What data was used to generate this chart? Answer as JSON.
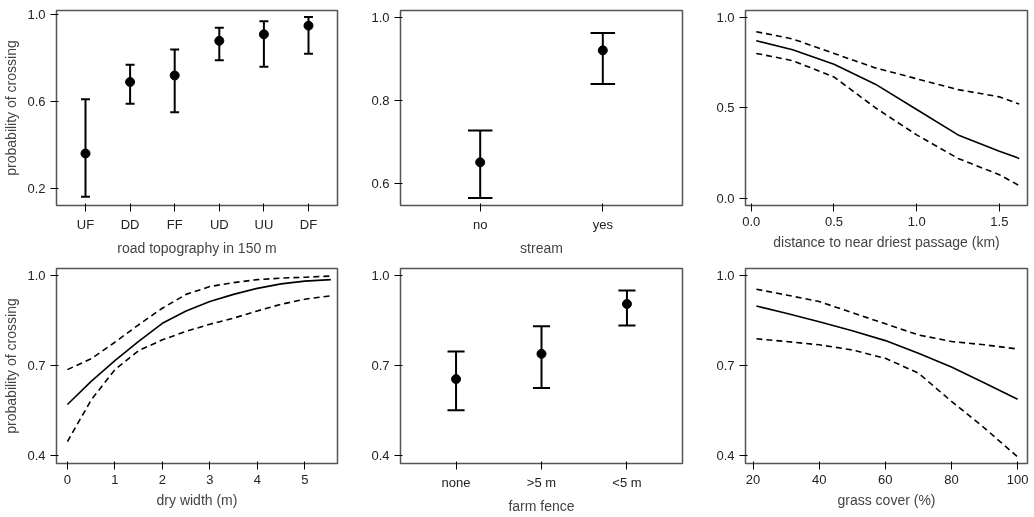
{
  "chart_data": [
    {
      "type": "scatter",
      "xlabel": "road topography in 150 m",
      "ylabel": "probability of crossing",
      "categories": [
        "UF",
        "DD",
        "FF",
        "UD",
        "UU",
        "DF"
      ],
      "values": [
        0.36,
        0.69,
        0.72,
        0.88,
        0.91,
        0.95
      ],
      "errors": [
        [
          0.16,
          0.61
        ],
        [
          0.59,
          0.77
        ],
        [
          0.55,
          0.84
        ],
        [
          0.79,
          0.94
        ],
        [
          0.76,
          0.97
        ],
        [
          0.82,
          0.99
        ]
      ],
      "marker": "circle",
      "color": "#000000",
      "ylim": [
        0.12,
        1.02
      ],
      "yticks": [
        {
          "value": 0.2,
          "label": "0.2"
        },
        {
          "value": 0.6,
          "label": "0.6"
        },
        {
          "value": 1,
          "label": "1.0"
        }
      ],
      "grid": false
    },
    {
      "type": "scatter",
      "xlabel": "stream",
      "categories": [
        "no",
        "yes"
      ],
      "values": [
        0.65,
        0.92
      ],
      "errors": [
        [
          0.564,
          0.727
        ],
        [
          0.839,
          0.962
        ]
      ],
      "marker": "circle",
      "color": "#000000",
      "ylim": [
        0.546,
        1.016
      ],
      "yticks": [
        {
          "value": 0.6,
          "label": "0.6"
        },
        {
          "value": 0.8,
          "label": "0.8"
        },
        {
          "value": 1,
          "label": "1.0"
        }
      ],
      "grid": false
    },
    {
      "type": "line",
      "xlabel": "distance to near driest passage (km)",
      "x": [
        0.03,
        0.25,
        0.5,
        0.75,
        1.0,
        1.25,
        1.5,
        1.62
      ],
      "series": [
        {
          "color": "#000000",
          "line_style": "solid",
          "values": [
            0.87,
            0.82,
            0.74,
            0.63,
            0.49,
            0.35,
            0.26,
            0.22
          ]
        },
        {
          "color": "#000000",
          "line_style": "dashed",
          "values": [
            0.92,
            0.88,
            0.8,
            0.72,
            0.66,
            0.6,
            0.56,
            0.52
          ]
        },
        {
          "color": "#000000",
          "line_style": "dashed",
          "values": [
            0.8,
            0.76,
            0.67,
            0.5,
            0.35,
            0.22,
            0.13,
            0.07
          ]
        }
      ],
      "xlim": [
        -0.035,
        1.67
      ],
      "xticks": [
        {
          "value": 0,
          "label": "0.0"
        },
        {
          "value": 0.5,
          "label": "0.5"
        },
        {
          "value": 1,
          "label": "1.0"
        },
        {
          "value": 1.5,
          "label": "1.5"
        }
      ],
      "ylim": [
        -0.04,
        1.037
      ],
      "yticks": [
        {
          "value": 0,
          "label": "0.0"
        },
        {
          "value": 0.5,
          "label": "0.5"
        },
        {
          "value": 1,
          "label": "1.0"
        }
      ],
      "grid": false,
      "marker": "none"
    },
    {
      "type": "line",
      "xlabel": "dry width (m)",
      "ylabel": "probability of crossing",
      "x": [
        0,
        0.5,
        1,
        1.5,
        2,
        2.5,
        3,
        3.5,
        4,
        4.5,
        5,
        5.55
      ],
      "series": [
        {
          "color": "#000000",
          "line_style": "solid",
          "values": [
            0.57,
            0.647,
            0.716,
            0.78,
            0.84,
            0.881,
            0.912,
            0.936,
            0.956,
            0.971,
            0.98,
            0.985
          ]
        },
        {
          "color": "#000000",
          "line_style": "dashed",
          "values": [
            0.686,
            0.722,
            0.777,
            0.835,
            0.89,
            0.936,
            0.962,
            0.975,
            0.985,
            0.99,
            0.993,
            0.997
          ]
        },
        {
          "color": "#000000",
          "line_style": "dashed",
          "values": [
            0.447,
            0.585,
            0.686,
            0.749,
            0.785,
            0.813,
            0.837,
            0.857,
            0.881,
            0.903,
            0.92,
            0.931
          ]
        }
      ],
      "xlim": [
        -0.23,
        5.69
      ],
      "xticks": [
        0,
        1,
        2,
        3,
        4,
        5
      ],
      "ylim": [
        0.374,
        1.022
      ],
      "yticks": [
        {
          "value": 0.4,
          "label": "0.4"
        },
        {
          "value": 0.7,
          "label": "0.7"
        },
        {
          "value": 1,
          "label": "1.0"
        }
      ],
      "grid": false,
      "marker": "none"
    },
    {
      "type": "scatter",
      "xlabel": "farm fence",
      "categories": [
        "none",
        ">5 m",
        "<5 m"
      ],
      "values": [
        0.656,
        0.74,
        0.906
      ],
      "errors": [
        [
          0.552,
          0.748
        ],
        [
          0.626,
          0.832
        ],
        [
          0.834,
          0.951
        ]
      ],
      "marker": "circle",
      "color": "#000000",
      "ylim": [
        0.375,
        1.024
      ],
      "yticks": [
        {
          "value": 0.4,
          "label": "0.4"
        },
        {
          "value": 0.7,
          "label": "0.7"
        },
        {
          "value": 1,
          "label": "1.0"
        }
      ],
      "grid": false
    },
    {
      "type": "line",
      "xlabel": "grass cover (%)",
      "x": [
        21,
        30,
        40,
        50,
        60,
        70,
        80,
        90,
        100
      ],
      "series": [
        {
          "color": "#000000",
          "line_style": "solid",
          "values": [
            0.899,
            0.875,
            0.847,
            0.817,
            0.784,
            0.742,
            0.696,
            0.643,
            0.589
          ]
        },
        {
          "color": "#000000",
          "line_style": "dashed",
          "values": [
            0.955,
            0.936,
            0.914,
            0.877,
            0.84,
            0.803,
            0.781,
            0.77,
            0.756
          ]
        },
        {
          "color": "#000000",
          "line_style": "dashed",
          "values": [
            0.79,
            0.781,
            0.77,
            0.753,
            0.725,
            0.676,
            0.582,
            0.493,
            0.397
          ]
        }
      ],
      "xlim": [
        17.7,
        103
      ],
      "xticks": [
        20,
        40,
        60,
        80,
        100
      ],
      "ylim": [
        0.375,
        1.024
      ],
      "yticks": [
        {
          "value": 0.4,
          "label": "0.4"
        },
        {
          "value": 0.7,
          "label": "0.7"
        },
        {
          "value": 1,
          "label": "1.0"
        }
      ],
      "grid": false,
      "marker": "none"
    }
  ]
}
